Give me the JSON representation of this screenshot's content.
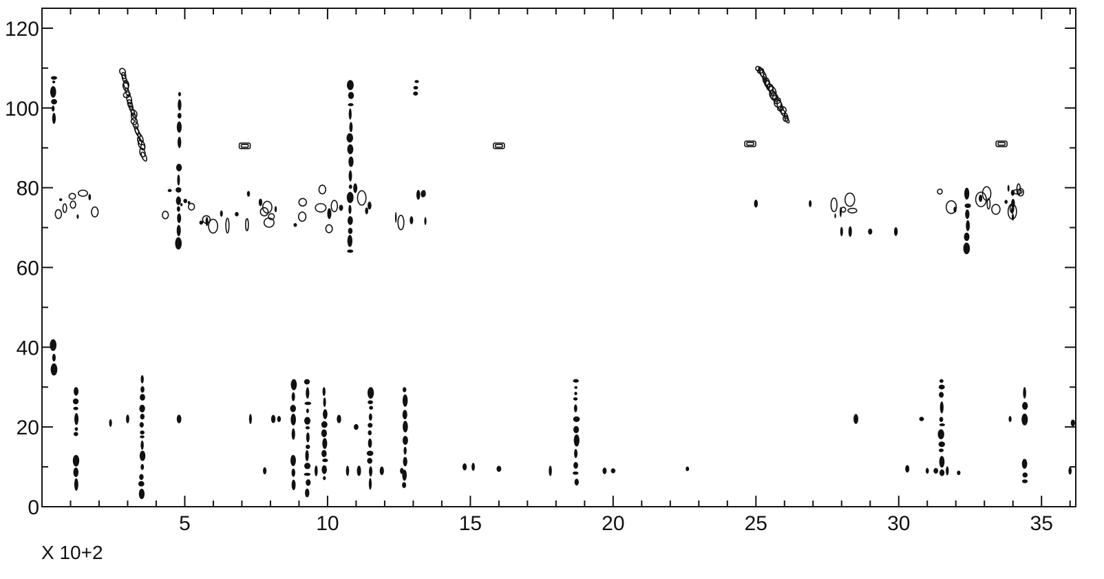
{
  "chart_data": {
    "type": "scatter",
    "title": "",
    "xlabel": "",
    "ylabel": "",
    "x_multiplier_label": "X 10+2",
    "xlim": [
      0,
      36.2
    ],
    "ylim": [
      0,
      125
    ],
    "x_ticks": [
      5,
      10,
      15,
      20,
      25,
      30,
      35
    ],
    "x_tick_labels": [
      "5",
      "10",
      "15",
      "20",
      "25",
      "30",
      "35"
    ],
    "y_ticks": [
      0,
      20,
      40,
      60,
      80,
      100,
      120
    ],
    "y_tick_labels": [
      "0",
      "20",
      "40",
      "60",
      "80",
      "100",
      "120"
    ],
    "grid": false,
    "colors": {
      "ink": "#111111",
      "background": "#ffffff"
    },
    "streaks": [
      {
        "x": 0.4,
        "y0": 98,
        "y1": 108
      },
      {
        "x": 0.4,
        "y0": 34,
        "y1": 42
      },
      {
        "x": 1.2,
        "y0": 6,
        "y1": 13
      },
      {
        "x": 1.2,
        "y0": 18,
        "y1": 30
      },
      {
        "x": 3.5,
        "y0": 3,
        "y1": 33
      },
      {
        "x": 4.8,
        "y0": 90,
        "y1": 104
      },
      {
        "x": 4.8,
        "y0": 66,
        "y1": 86
      },
      {
        "x": 8.8,
        "y0": 6,
        "y1": 13
      },
      {
        "x": 8.8,
        "y0": 17,
        "y1": 32
      },
      {
        "x": 9.3,
        "y0": 4,
        "y1": 32
      },
      {
        "x": 9.9,
        "y0": 6,
        "y1": 30
      },
      {
        "x": 10.8,
        "y0": 64,
        "y1": 107
      },
      {
        "x": 11.5,
        "y0": 6,
        "y1": 30
      },
      {
        "x": 12.7,
        "y0": 6,
        "y1": 30
      },
      {
        "x": 13.1,
        "y0": 103,
        "y1": 107
      },
      {
        "x": 18.7,
        "y0": 6,
        "y1": 32
      },
      {
        "x": 31.5,
        "y0": 7,
        "y1": 32
      },
      {
        "x": 32.4,
        "y0": 65,
        "y1": 80
      },
      {
        "x": 34.4,
        "y0": 6,
        "y1": 12
      },
      {
        "x": 34.4,
        "y0": 22,
        "y1": 30
      }
    ],
    "diagonal_ridges": [
      {
        "x0": 2.8,
        "y0": 109,
        "x1": 3.6,
        "y1": 88
      },
      {
        "x0": 25.1,
        "y0": 110,
        "x1": 26.1,
        "y1": 97
      }
    ],
    "band_clusters": [
      {
        "x0": 0.1,
        "x1": 2.1,
        "y_center": 75,
        "y_spread": 5
      },
      {
        "x0": 4.0,
        "x1": 9.2,
        "y_center": 75,
        "y_spread": 6
      },
      {
        "x0": 9.4,
        "x1": 11.6,
        "y_center": 75,
        "y_spread": 7
      },
      {
        "x0": 11.9,
        "x1": 13.5,
        "y_center": 75,
        "y_spread": 5
      },
      {
        "x0": 27.6,
        "x1": 28.4,
        "y_center": 76,
        "y_spread": 4
      },
      {
        "x0": 30.5,
        "x1": 34.6,
        "y_center": 76,
        "y_spread": 5
      }
    ],
    "small_peaks": [
      {
        "x": 7.1,
        "y": 90.5,
        "shape": "box"
      },
      {
        "x": 16.0,
        "y": 90.5,
        "shape": "box"
      },
      {
        "x": 24.8,
        "y": 91,
        "shape": "box"
      },
      {
        "x": 33.6,
        "y": 91,
        "shape": "box"
      },
      {
        "x": 2.4,
        "y": 21,
        "shape": "dot"
      },
      {
        "x": 3.0,
        "y": 22,
        "shape": "dot"
      },
      {
        "x": 4.8,
        "y": 22,
        "shape": "dot"
      },
      {
        "x": 7.3,
        "y": 22,
        "shape": "dot"
      },
      {
        "x": 8.1,
        "y": 22,
        "shape": "dot"
      },
      {
        "x": 8.3,
        "y": 22,
        "shape": "dot"
      },
      {
        "x": 10.4,
        "y": 22,
        "shape": "dot"
      },
      {
        "x": 11.0,
        "y": 20,
        "shape": "dot"
      },
      {
        "x": 14.8,
        "y": 10,
        "shape": "dot"
      },
      {
        "x": 15.1,
        "y": 10,
        "shape": "dot"
      },
      {
        "x": 16.0,
        "y": 9.5,
        "shape": "dot"
      },
      {
        "x": 17.8,
        "y": 9,
        "shape": "dot"
      },
      {
        "x": 19.7,
        "y": 9,
        "shape": "dot"
      },
      {
        "x": 20.0,
        "y": 9,
        "shape": "dot"
      },
      {
        "x": 22.6,
        "y": 9.5,
        "shape": "dot"
      },
      {
        "x": 28.5,
        "y": 22,
        "shape": "dot"
      },
      {
        "x": 30.8,
        "y": 22,
        "shape": "dot"
      },
      {
        "x": 30.3,
        "y": 9.5,
        "shape": "dot"
      },
      {
        "x": 31.0,
        "y": 9,
        "shape": "dot"
      },
      {
        "x": 31.3,
        "y": 9,
        "shape": "dot"
      },
      {
        "x": 31.7,
        "y": 9,
        "shape": "dot"
      },
      {
        "x": 32.1,
        "y": 8.5,
        "shape": "dot"
      },
      {
        "x": 33.9,
        "y": 22,
        "shape": "dot"
      },
      {
        "x": 36.0,
        "y": 9,
        "shape": "dot"
      },
      {
        "x": 36.1,
        "y": 21,
        "shape": "dot"
      },
      {
        "x": 28.0,
        "y": 69,
        "shape": "dot"
      },
      {
        "x": 28.3,
        "y": 69,
        "shape": "dot"
      },
      {
        "x": 29.0,
        "y": 69,
        "shape": "dot"
      },
      {
        "x": 29.9,
        "y": 69,
        "shape": "dot"
      },
      {
        "x": 25.0,
        "y": 76,
        "shape": "dot"
      },
      {
        "x": 26.9,
        "y": 76,
        "shape": "dot"
      },
      {
        "x": 10.7,
        "y": 9,
        "shape": "dot"
      },
      {
        "x": 11.1,
        "y": 9,
        "shape": "dot"
      },
      {
        "x": 11.9,
        "y": 9,
        "shape": "dot"
      },
      {
        "x": 12.6,
        "y": 9,
        "shape": "dot"
      },
      {
        "x": 9.6,
        "y": 9,
        "shape": "dot"
      },
      {
        "x": 7.8,
        "y": 9,
        "shape": "dot"
      }
    ]
  }
}
